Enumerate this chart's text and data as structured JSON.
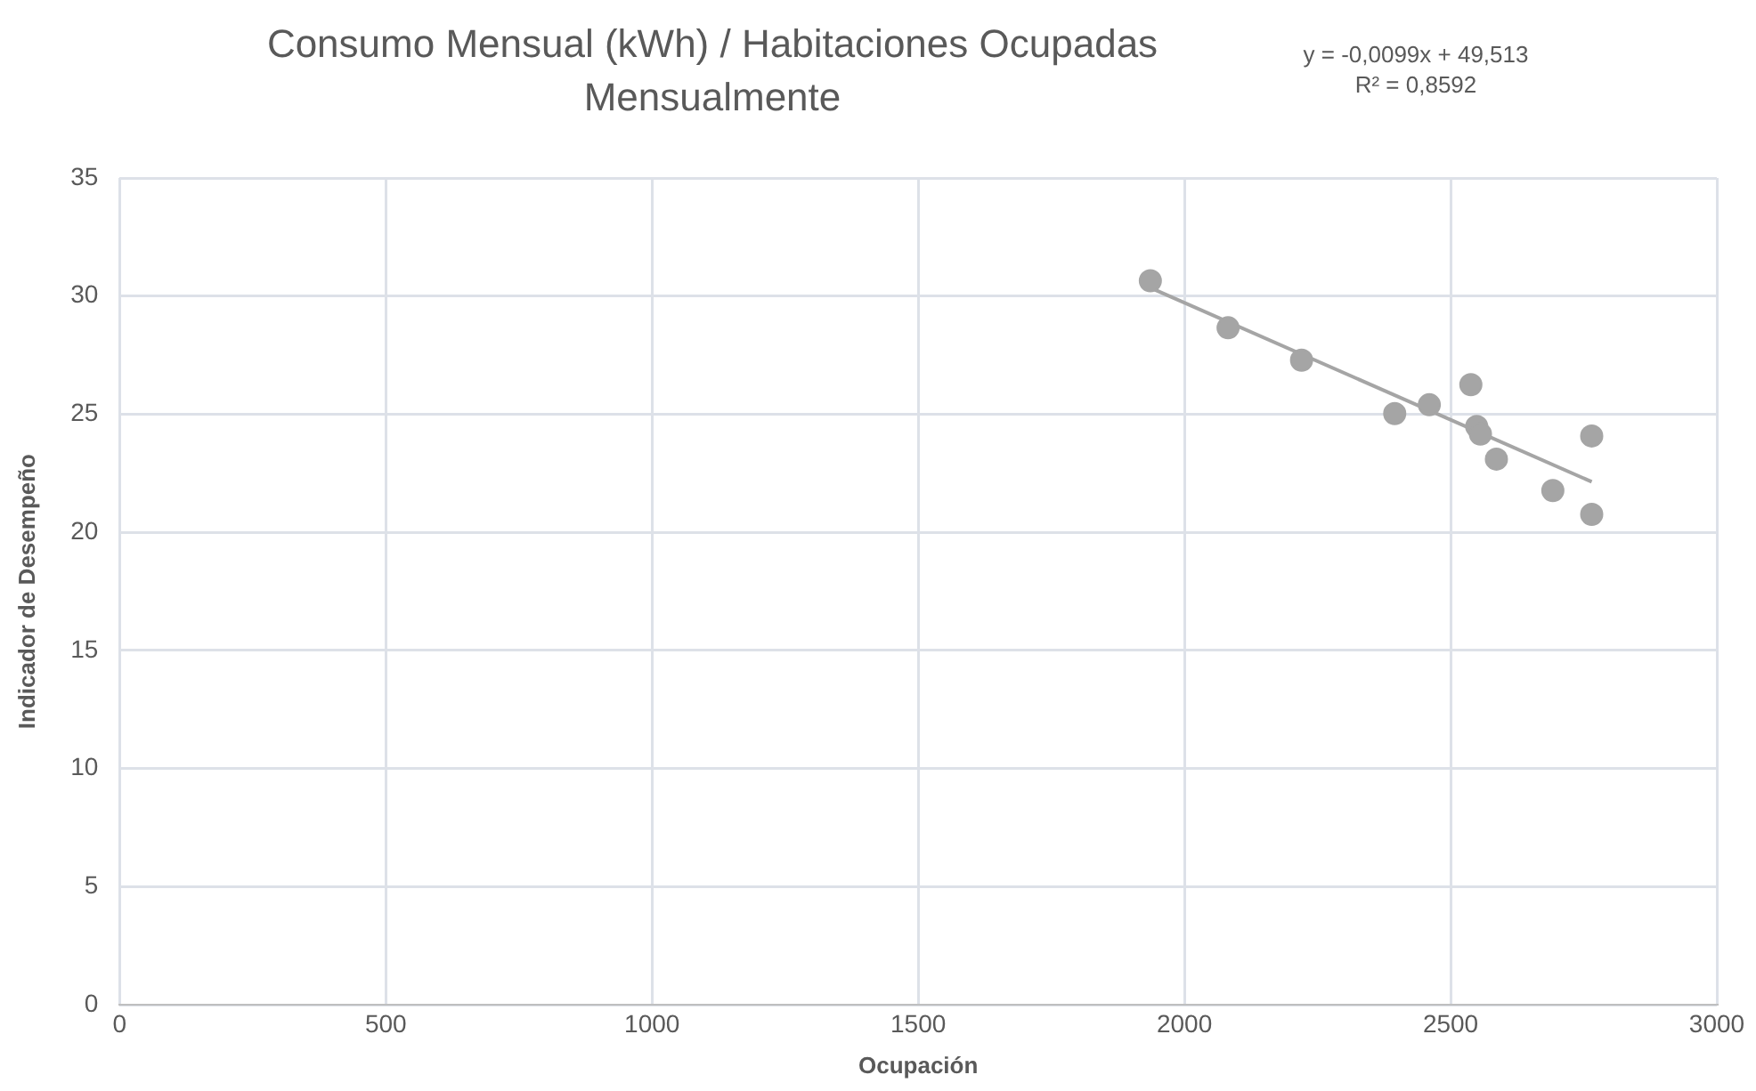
{
  "chart_data": {
    "type": "scatter",
    "title": "Consumo Mensual (kWh) / Habitaciones Ocupadas Mensualmente",
    "xlabel": "Ocupación",
    "ylabel": "Indicador de Desempeño",
    "annotations": [
      "y = -0,0099x + 49,513",
      "R² = 0,8592"
    ],
    "series": [
      {
        "type": "scatter",
        "marker": "circle",
        "color": "#a5a5a5",
        "x": [
          1936,
          2082,
          2220,
          2395,
          2460,
          2538,
          2549,
          2556,
          2586,
          2692,
          2765,
          2765
        ],
        "values": [
          30.65,
          28.66,
          27.29,
          25.03,
          25.4,
          26.25,
          24.48,
          24.16,
          23.1,
          21.77,
          24.08,
          20.76
        ]
      },
      {
        "type": "line",
        "marker": "none",
        "color": "#a5a5a5",
        "x": [
          1936,
          2765
        ],
        "values": [
          30.35,
          22.14
        ]
      }
    ],
    "xlim": [
      0,
      3000
    ],
    "xticks": [
      0,
      500,
      1000,
      1500,
      2000,
      2500,
      3000
    ],
    "ylim": [
      0,
      35
    ],
    "yticks": [
      0,
      5,
      10,
      15,
      20,
      25,
      30,
      35
    ],
    "grid": true,
    "legend": false
  }
}
